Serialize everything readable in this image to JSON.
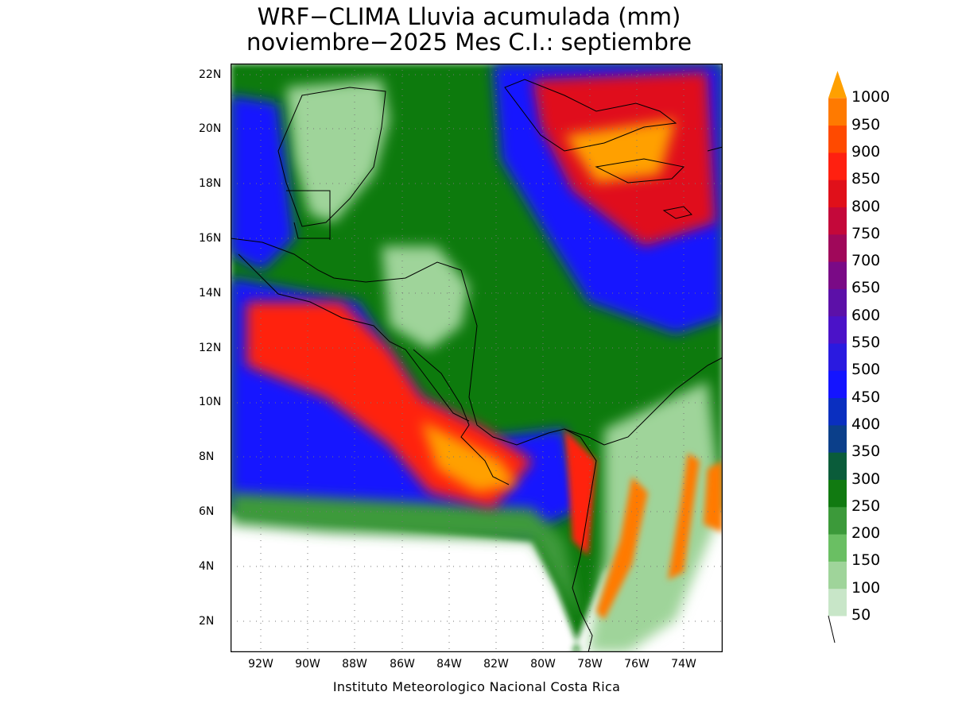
{
  "title_line1": "WRF−CLIMA Lluvia acumulada (mm)",
  "title_line2": "noviembre−2025 Mes C.I.: septiembre",
  "credit": "Instituto Meteorologico Nacional Costa Rica",
  "map": {
    "lon_range": [
      -93.3,
      -72.2
    ],
    "lat_range": [
      0.9,
      22.4
    ],
    "lat_ticks": [
      "22N",
      "20N",
      "18N",
      "16N",
      "14N",
      "12N",
      "10N",
      "8N",
      "6N",
      "4N",
      "2N"
    ],
    "lon_ticks": [
      "92W",
      "90W",
      "88W",
      "86W",
      "84W",
      "82W",
      "80W",
      "78W",
      "76W",
      "74W"
    ]
  },
  "colorbar": {
    "unit": "mm",
    "levels": [
      "50",
      "100",
      "150",
      "200",
      "250",
      "300",
      "350",
      "400",
      "450",
      "500",
      "550",
      "600",
      "650",
      "700",
      "750",
      "800",
      "850",
      "900",
      "950",
      "1000"
    ],
    "colors": [
      "#c8e6c8",
      "#9fd49a",
      "#6abf63",
      "#3c9a3a",
      "#117a11",
      "#0a5c3a",
      "#0b3f8a",
      "#0a2fc0",
      "#1414ff",
      "#2a1ae0",
      "#4b12c8",
      "#5c10a8",
      "#7a0a86",
      "#a0085a",
      "#c4083a",
      "#e0101a",
      "#ff2010",
      "#ff4a00",
      "#ff7a00",
      "#ffa000"
    ]
  }
}
